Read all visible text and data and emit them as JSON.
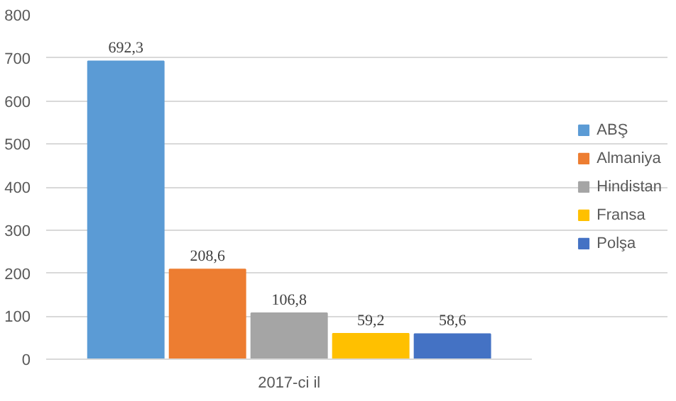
{
  "chart_data": {
    "type": "bar",
    "categories": [
      "2017-ci il"
    ],
    "series": [
      {
        "name": "ABŞ",
        "color": "#5b9bd5",
        "values": [
          692.3
        ],
        "value_labels": [
          "692,3"
        ]
      },
      {
        "name": "Almaniya",
        "color": "#ed7d31",
        "values": [
          208.6
        ],
        "value_labels": [
          "208,6"
        ]
      },
      {
        "name": "Hindistan",
        "color": "#a5a5a5",
        "values": [
          106.8
        ],
        "value_labels": [
          "106,8"
        ]
      },
      {
        "name": "Fransa",
        "color": "#ffc000",
        "values": [
          59.2
        ],
        "value_labels": [
          "59,2"
        ]
      },
      {
        "name": "Polşa",
        "color": "#4472c4",
        "values": [
          58.6
        ],
        "value_labels": [
          "58,6"
        ]
      }
    ],
    "ylim": [
      0,
      800
    ],
    "yticks": [
      0,
      100,
      200,
      300,
      400,
      500,
      600,
      700,
      800
    ],
    "grid": "y",
    "legend": "right"
  }
}
